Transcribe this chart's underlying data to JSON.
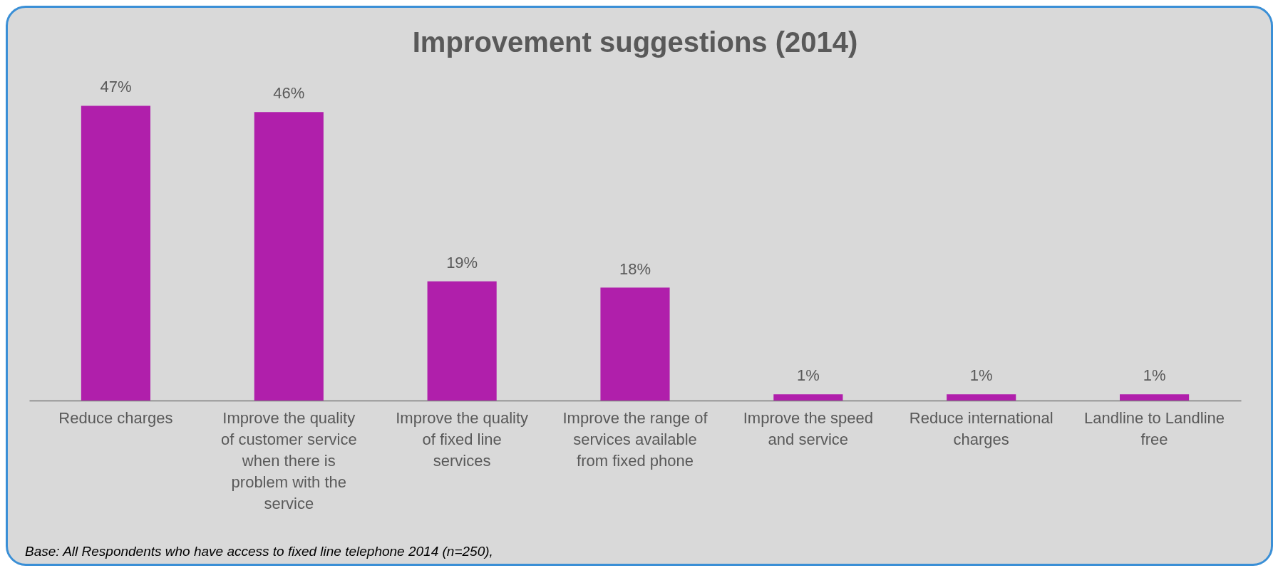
{
  "chart_data": {
    "type": "bar",
    "title": "Improvement suggestions (2014)",
    "categories": [
      "Reduce charges",
      "Improve the quality of customer service when there is problem with the service",
      "Improve the quality of fixed line services",
      "Improve the range of services available from fixed phone",
      "Improve the speed and service",
      "Reduce international charges",
      "Landline to Landline free"
    ],
    "values": [
      47,
      46,
      19,
      18,
      1,
      1,
      1
    ],
    "color": "#b01fab",
    "value_labels": [
      "47%",
      "46%",
      "19%",
      "18%",
      "1%",
      "1%",
      "1%"
    ],
    "annotations": [
      "Base: All Respondents who have access to fixed line telephone 2014 (n=250),"
    ]
  }
}
